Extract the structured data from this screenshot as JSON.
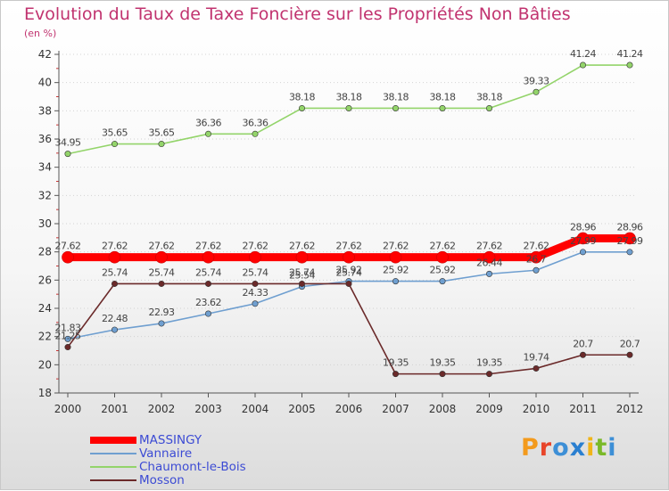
{
  "title": "Evolution du Taux de Taxe Foncière sur les Propriétés Non Bâties",
  "unit_label": "(en %)",
  "logo": {
    "text": "Proxiti",
    "letter_colors": [
      "#f39a1c",
      "#e8452a",
      "#3d8fd6",
      "#2a7fd0",
      "#f0b419",
      "#7ab929",
      "#3d8fd6"
    ]
  },
  "chart_data": {
    "type": "line",
    "title": "Evolution du Taux de Taxe Foncière sur les Propriétés Non Bâties",
    "ylabel": "(en %)",
    "xlabel": "",
    "x": [
      "2000",
      "2001",
      "2002",
      "2003",
      "2004",
      "2005",
      "2006",
      "2007",
      "2008",
      "2009",
      "2010",
      "2011",
      "2012"
    ],
    "ylim": [
      18,
      42
    ],
    "yticks": [
      "18",
      "20",
      "22",
      "24",
      "26",
      "28",
      "30",
      "32",
      "34",
      "36",
      "38",
      "40",
      "42"
    ],
    "grid": "horizontal dotted",
    "legend_position": "bottom-left",
    "series": [
      {
        "name": "MASSINGY",
        "color": "#ff0000",
        "values": [
          27.62,
          27.62,
          27.62,
          27.62,
          27.62,
          27.62,
          27.62,
          27.62,
          27.62,
          27.62,
          27.62,
          28.96,
          28.96
        ],
        "labels": [
          "27.62",
          "27.62",
          "27.62",
          "27.62",
          "27.62",
          "27.62",
          "27.62",
          "27.62",
          "27.62",
          "27.62",
          "27.62",
          "28.96",
          "28.96"
        ]
      },
      {
        "name": "Vannaire",
        "color": "#6f9fd0",
        "values": [
          21.83,
          22.48,
          22.93,
          23.62,
          24.33,
          25.54,
          25.92,
          25.92,
          25.92,
          26.44,
          26.7,
          27.99,
          27.99
        ],
        "labels": [
          "21.83",
          "22.48",
          "22.93",
          "23.62",
          "24.33",
          "25.54",
          "25.92",
          "25.92",
          "25.92",
          "26.44",
          "26.7",
          "27.99",
          "27.99"
        ]
      },
      {
        "name": "Chaumont-le-Bois",
        "color": "#93d46a",
        "values": [
          34.95,
          35.65,
          35.65,
          36.36,
          36.36,
          38.18,
          38.18,
          38.18,
          38.18,
          38.18,
          39.33,
          41.24,
          41.24
        ],
        "labels": [
          "34.95",
          "35.65",
          "35.65",
          "36.36",
          "36.36",
          "38.18",
          "38.18",
          "38.18",
          "38.18",
          "38.18",
          "39.33",
          "41.24",
          "41.24"
        ]
      },
      {
        "name": "Mosson",
        "color": "#6b2a2a",
        "values": [
          21.25,
          25.74,
          25.74,
          25.74,
          25.74,
          25.74,
          25.74,
          19.35,
          19.35,
          19.35,
          19.74,
          20.7,
          20.7
        ],
        "labels": [
          "21.25",
          "25.74",
          "25.74",
          "25.74",
          "25.74",
          "25.74",
          "25.74",
          "19.35",
          "19.35",
          "19.35",
          "19.74",
          "20.7",
          "20.7"
        ]
      }
    ]
  }
}
